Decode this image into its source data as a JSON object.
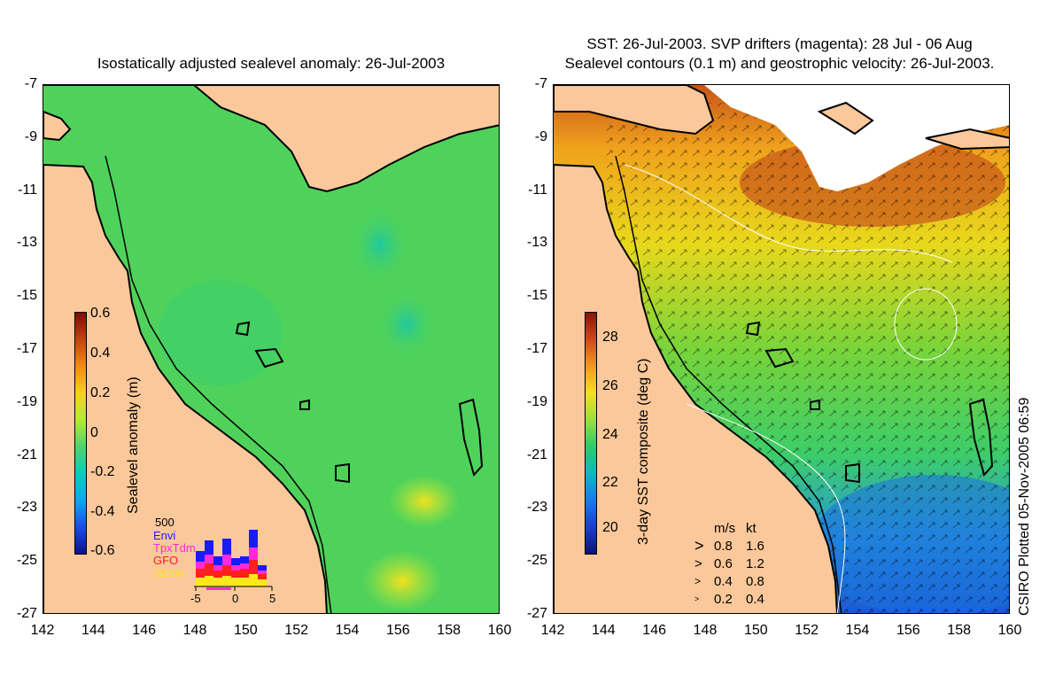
{
  "left_panel": {
    "title": "Isostatically adjusted sealevel anomaly: 26-Jul-2003",
    "colorbar_title": "Sealevel anomaly (m)",
    "colorbar_ticks": [
      "0.6",
      "0.4",
      "0.2",
      "0",
      "-0.2",
      "-0.4",
      "-0.6"
    ],
    "colorbar_colors": [
      "#7a0d08",
      "#c0440e",
      "#f08a1a",
      "#f5d21c",
      "#b6ea3a",
      "#4fd36e",
      "#12c9b8",
      "#15a6f0",
      "#1a4fe0",
      "#10108a"
    ],
    "histogram": {
      "top_label": "500",
      "series": [
        {
          "name": "Envi",
          "color": "#1a1aff"
        },
        {
          "name": "TpxTdm",
          "color": "#ff2bd8"
        },
        {
          "name": "GFO",
          "color": "#ff2020"
        },
        {
          "name": "Jason",
          "color": "#ffe81a"
        }
      ],
      "x_ticks": [
        "-5",
        "0",
        "5"
      ]
    }
  },
  "right_panel": {
    "title_line1": "SST: 26-Jul-2003. SVP drifters (magenta): 28 Jul - 06 Aug",
    "title_line2": "Sealevel contours (0.1 m) and geostrophic velocity: 26-Jul-2003.",
    "colorbar_title": "3-day SST composite (deg C)",
    "colorbar_ticks": [
      "28",
      "26",
      "24",
      "22",
      "20"
    ],
    "colorbar_colors": [
      "#8a1208",
      "#d2481a",
      "#f29a20",
      "#f5df1f",
      "#9ae03a",
      "#2fc96a",
      "#12b6c2",
      "#1a7be8",
      "#1840c8",
      "#0a1470"
    ],
    "velocity_legend": {
      "header_ms": "m/s",
      "header_kt": "kt",
      "rows": [
        {
          "ms": "0.8",
          "kt": "1.6"
        },
        {
          "ms": "0.6",
          "kt": "1.2"
        },
        {
          "ms": "0.4",
          "kt": "0.8"
        },
        {
          "ms": "0.2",
          "kt": "0.4"
        }
      ]
    }
  },
  "y_axis_labels": [
    "-7",
    "-9",
    "-11",
    "-13",
    "-15",
    "-17",
    "-19",
    "-21",
    "-23",
    "-25",
    "-27"
  ],
  "x_axis_labels": [
    "142",
    "144",
    "146",
    "148",
    "150",
    "152",
    "154",
    "156",
    "158",
    "160"
  ],
  "credit": "CSIRO Plotted 05-Nov-2005 06:59",
  "map_colors": {
    "land": "#fac89a",
    "ocean_sla": "#4fd25a",
    "ocean_sst_warm": "#f0c21a",
    "ocean_sst_mid": "#6fd43a",
    "ocean_sst_cool": "#1a8ae0"
  }
}
